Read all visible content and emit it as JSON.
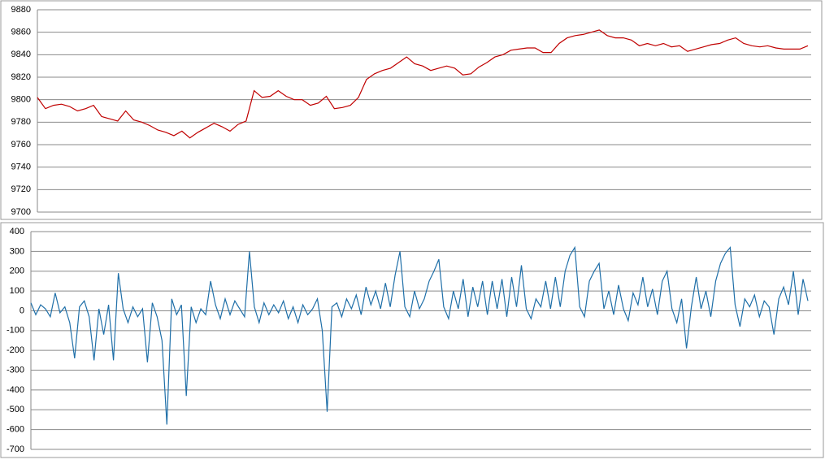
{
  "chart_data": [
    {
      "type": "line",
      "ylim": [
        9700,
        9880
      ],
      "yticks": [
        9700,
        9720,
        9740,
        9760,
        9780,
        9800,
        9820,
        9840,
        9860,
        9880
      ],
      "grid": true,
      "series": [
        {
          "color": "#c00000",
          "values": [
            9802,
            9792,
            9795,
            9796,
            9794,
            9790,
            9792,
            9795,
            9785,
            9783,
            9781,
            9790,
            9782,
            9780,
            9777,
            9773,
            9771,
            9768,
            9772,
            9766,
            9771,
            9775,
            9779,
            9776,
            9772,
            9778,
            9781,
            9808,
            9802,
            9803,
            9808,
            9803,
            9800,
            9800,
            9795,
            9797,
            9803,
            9792,
            9793,
            9795,
            9802,
            9818,
            9823,
            9826,
            9828,
            9833,
            9838,
            9832,
            9830,
            9826,
            9828,
            9830,
            9828,
            9822,
            9823,
            9829,
            9833,
            9838,
            9840,
            9844,
            9845,
            9846,
            9846,
            9842,
            9842,
            9850,
            9855,
            9857,
            9858,
            9860,
            9862,
            9857,
            9855,
            9855,
            9853,
            9848,
            9850,
            9848,
            9850,
            9847,
            9848,
            9843,
            9845,
            9847,
            9849,
            9850,
            9853,
            9855,
            9850,
            9848,
            9847,
            9848,
            9846,
            9845,
            9845,
            9845,
            9848
          ]
        }
      ]
    },
    {
      "type": "line",
      "ylim": [
        -700,
        400
      ],
      "yticks": [
        -700,
        -600,
        -500,
        -400,
        -300,
        -200,
        -100,
        0,
        100,
        200,
        300,
        400
      ],
      "grid": true,
      "series": [
        {
          "color": "#1f6fa8",
          "values": [
            40,
            -20,
            30,
            10,
            -30,
            90,
            -10,
            20,
            -60,
            -240,
            20,
            50,
            -30,
            -250,
            10,
            -120,
            30,
            -250,
            190,
            10,
            -60,
            20,
            -30,
            10,
            -260,
            40,
            -30,
            -150,
            -575,
            60,
            -20,
            30,
            -430,
            20,
            -60,
            10,
            -20,
            150,
            30,
            -40,
            60,
            -20,
            50,
            10,
            -30,
            300,
            20,
            -60,
            40,
            -20,
            30,
            -10,
            50,
            -40,
            20,
            -60,
            30,
            -20,
            10,
            60,
            -100,
            -510,
            20,
            40,
            -30,
            60,
            10,
            80,
            -20,
            120,
            30,
            100,
            10,
            140,
            20,
            180,
            300,
            20,
            -30,
            100,
            10,
            60,
            150,
            200,
            260,
            20,
            -40,
            100,
            10,
            160,
            -30,
            120,
            20,
            150,
            -20,
            150,
            10,
            160,
            -30,
            170,
            20,
            230,
            10,
            -40,
            60,
            20,
            150,
            10,
            170,
            20,
            200,
            280,
            320,
            20,
            -30,
            150,
            200,
            240,
            10,
            100,
            -20,
            130,
            10,
            -50,
            90,
            30,
            170,
            20,
            110,
            -20,
            150,
            200,
            10,
            -60,
            60,
            -190,
            20,
            170,
            10,
            100,
            -30,
            150,
            240,
            290,
            320,
            30,
            -80,
            60,
            20,
            80,
            -30,
            50,
            20,
            -120,
            60,
            120,
            30,
            200,
            -20,
            160,
            50
          ]
        }
      ]
    }
  ]
}
